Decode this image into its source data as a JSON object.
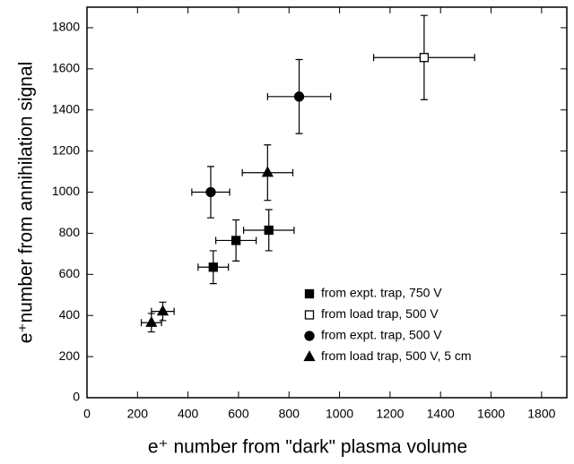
{
  "chart_data": {
    "type": "scatter",
    "x_label": "e⁺ number from \"dark\" plasma volume",
    "y_label": "e⁺number from annihilation signal",
    "xlim": [
      0,
      1900
    ],
    "ylim": [
      0,
      1900
    ],
    "xticks": [
      0,
      200,
      400,
      600,
      800,
      1000,
      1200,
      1400,
      1600,
      1800
    ],
    "yticks": [
      0,
      200,
      400,
      600,
      800,
      1000,
      1200,
      1400,
      1600,
      1800
    ],
    "legend": "lower right",
    "series": [
      {
        "name": "from expt. trap, 750 V",
        "marker": "square",
        "filled": true,
        "color": "#000000",
        "x": [
          500,
          590,
          720
        ],
        "x_err": [
          60,
          80,
          100
        ],
        "values": [
          635,
          765,
          815
        ],
        "y_err": [
          80,
          100,
          100
        ]
      },
      {
        "name": "from load trap, 500 V",
        "marker": "square",
        "filled": false,
        "color": "#000000",
        "x": [
          1335
        ],
        "x_err": [
          200
        ],
        "values": [
          1655
        ],
        "y_err": [
          205
        ]
      },
      {
        "name": "from expt. trap, 500 V",
        "marker": "circle",
        "filled": true,
        "color": "#000000",
        "x": [
          490,
          840
        ],
        "x_err": [
          75,
          125
        ],
        "values": [
          1000,
          1465
        ],
        "y_err": [
          125,
          180
        ]
      },
      {
        "name": "from load trap, 500 V, 5 cm",
        "marker": "triangle",
        "filled": true,
        "color": "#000000",
        "x": [
          255,
          300,
          715
        ],
        "x_err": [
          40,
          45,
          100
        ],
        "values": [
          365,
          420,
          1095
        ],
        "y_err": [
          45,
          45,
          135
        ]
      }
    ]
  }
}
